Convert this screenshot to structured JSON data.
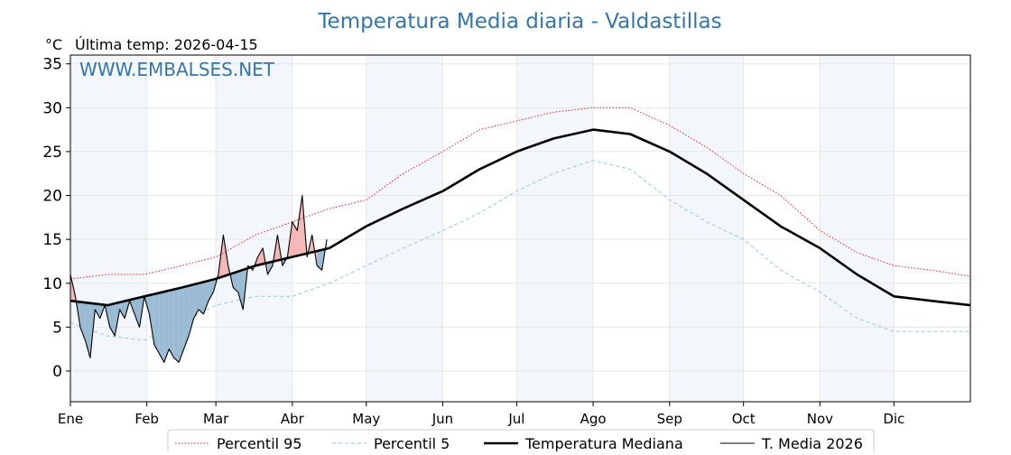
{
  "chart_data": {
    "type": "line",
    "title": "Temperatura Media diaria - Valdastillas",
    "unit_label": "°C",
    "subtitle": "Última temp: 2026-04-15",
    "watermark": "WWW.EMBALSES.NET",
    "ylim": [
      -3.5,
      36
    ],
    "yticks": [
      0,
      5,
      10,
      15,
      20,
      25,
      30,
      35
    ],
    "month_ticks": [
      {
        "label": "Ene",
        "day": 0
      },
      {
        "label": "Feb",
        "day": 31
      },
      {
        "label": "Mar",
        "day": 59
      },
      {
        "label": "Abr",
        "day": 90
      },
      {
        "label": "May",
        "day": 120
      },
      {
        "label": "Jun",
        "day": 151
      },
      {
        "label": "Jul",
        "day": 181
      },
      {
        "label": "Ago",
        "day": 212
      },
      {
        "label": "Sep",
        "day": 243
      },
      {
        "label": "Oct",
        "day": 273
      },
      {
        "label": "Nov",
        "day": 304
      },
      {
        "label": "Dic",
        "day": 334
      }
    ],
    "days_in_year": 365,
    "grid": true,
    "legend_position": "bottom-center",
    "shaded_months": [
      "Ene",
      "Mar",
      "May",
      "Jul",
      "Sep",
      "Nov"
    ],
    "series": [
      {
        "name": "Percentil 95",
        "color": "#e8211f",
        "style": "dotted",
        "x": [
          0,
          15,
          30,
          45,
          59,
          75,
          90,
          105,
          120,
          135,
          151,
          166,
          181,
          196,
          212,
          227,
          243,
          258,
          273,
          288,
          304,
          319,
          334,
          349,
          365
        ],
        "y": [
          10.5,
          11,
          11,
          12,
          13,
          15.5,
          17,
          18.5,
          19.5,
          22.5,
          25,
          27.5,
          28.5,
          29.5,
          30,
          30,
          28,
          25.5,
          22.5,
          20,
          16,
          13.5,
          12,
          11.5,
          10.8
        ]
      },
      {
        "name": "Percentil 5",
        "color": "#8fc8dc",
        "style": "dashed",
        "x": [
          0,
          15,
          30,
          45,
          59,
          75,
          90,
          105,
          120,
          135,
          151,
          166,
          181,
          196,
          212,
          227,
          243,
          258,
          273,
          288,
          304,
          319,
          334,
          349,
          365
        ],
        "y": [
          5.5,
          4,
          3.5,
          5.5,
          7.5,
          8.5,
          8.5,
          10,
          12,
          14,
          16,
          18,
          20.5,
          22.5,
          24,
          23,
          19.5,
          17,
          15,
          11.5,
          9,
          6,
          4.5,
          4.5,
          4.5
        ]
      },
      {
        "name": "Temperatura Mediana",
        "color": "#000000",
        "style": "solid-thick",
        "x": [
          0,
          15,
          30,
          45,
          59,
          75,
          90,
          105,
          120,
          135,
          151,
          166,
          181,
          196,
          212,
          227,
          243,
          258,
          273,
          288,
          304,
          319,
          334,
          349,
          365
        ],
        "y": [
          8,
          7.5,
          8.5,
          9.5,
          10.5,
          12,
          13,
          14,
          16.5,
          18.5,
          20.5,
          23,
          25,
          26.5,
          27.5,
          27,
          25,
          22.5,
          19.5,
          16.5,
          14,
          11,
          8.5,
          8,
          7.5
        ]
      },
      {
        "name": "T. Media 2026",
        "color": "#000000",
        "style": "solid-thin",
        "x": [
          0,
          2,
          4,
          6,
          8,
          10,
          12,
          14,
          16,
          18,
          20,
          22,
          24,
          26,
          28,
          30,
          32,
          34,
          36,
          38,
          40,
          42,
          44,
          46,
          48,
          50,
          52,
          54,
          56,
          58,
          60,
          62,
          64,
          66,
          68,
          70,
          72,
          74,
          76,
          78,
          80,
          82,
          84,
          86,
          88,
          90,
          92,
          94,
          96,
          98,
          100,
          102,
          104
        ],
        "y": [
          11,
          8.5,
          5,
          3.5,
          1.5,
          7,
          6,
          7.5,
          5,
          4,
          7,
          6,
          8,
          6.5,
          5,
          8.5,
          6.5,
          3,
          2,
          1,
          2.5,
          1.5,
          1,
          2.5,
          4,
          6,
          7,
          6.5,
          8,
          9,
          11,
          15.5,
          12,
          9.5,
          9,
          7,
          12,
          11.5,
          13,
          14,
          11,
          12,
          15.5,
          12,
          13,
          17,
          16,
          20,
          13,
          15.5,
          12,
          11.5,
          15
        ]
      }
    ],
    "legend": [
      "Percentil 95",
      "Percentil 5",
      "Temperatura Mediana",
      "T. Media 2026"
    ]
  }
}
